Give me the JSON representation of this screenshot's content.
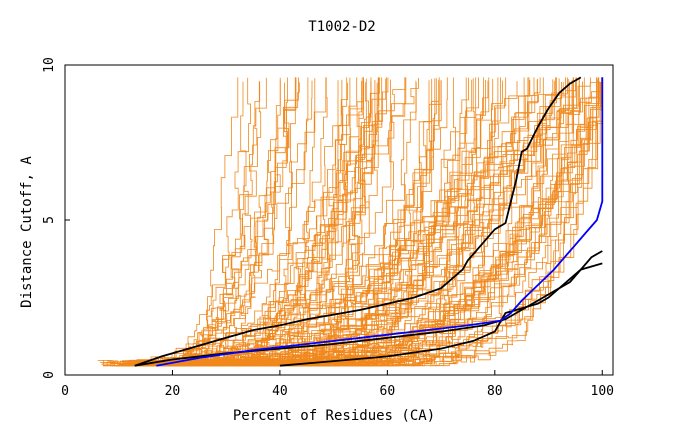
{
  "chart_data": {
    "type": "line",
    "title": "T1002-D2",
    "xlabel": "Percent of Residues (CA)",
    "ylabel": "Distance Cutoff, A",
    "xlim": [
      0,
      102
    ],
    "ylim": [
      0,
      10
    ],
    "xticks": [
      0,
      20,
      40,
      60,
      80,
      100
    ],
    "yticks": [
      0,
      5,
      10
    ],
    "colors": {
      "background_models": "#f0881c",
      "highlight_black": "#000000",
      "highlight_blue": "#0000ff"
    },
    "background_series_count": 130,
    "highlighted_series": [
      {
        "name": "black-curve-1",
        "color": "#000000",
        "x": [
          13,
          18,
          24,
          30,
          35,
          40,
          45,
          50,
          55,
          60,
          65,
          70,
          72,
          74,
          75,
          76,
          78,
          80,
          82,
          83,
          84,
          85,
          86,
          88,
          90,
          92,
          94,
          96
        ],
        "y": [
          0.3,
          0.6,
          0.9,
          1.2,
          1.45,
          1.6,
          1.8,
          1.95,
          2.1,
          2.3,
          2.5,
          2.8,
          3.1,
          3.4,
          3.7,
          3.9,
          4.3,
          4.7,
          4.9,
          5.6,
          6.3,
          7.2,
          7.3,
          8.0,
          8.6,
          9.1,
          9.4,
          9.6
        ]
      },
      {
        "name": "black-curve-2",
        "color": "#000000",
        "x": [
          13,
          20,
          30,
          40,
          50,
          60,
          70,
          78,
          82,
          84,
          88,
          92,
          96,
          100
        ],
        "y": [
          0.3,
          0.5,
          0.7,
          0.85,
          1.0,
          1.2,
          1.4,
          1.6,
          1.8,
          2.0,
          2.4,
          2.8,
          3.4,
          3.6
        ]
      },
      {
        "name": "black-curve-3",
        "color": "#000000",
        "x": [
          40,
          50,
          60,
          70,
          76,
          80,
          82,
          84,
          86,
          88,
          90,
          92,
          94,
          96,
          98,
          100
        ],
        "y": [
          0.3,
          0.45,
          0.6,
          0.85,
          1.1,
          1.4,
          2.0,
          2.1,
          2.2,
          2.3,
          2.5,
          2.8,
          3.0,
          3.4,
          3.8,
          4.0
        ]
      },
      {
        "name": "blue-curve",
        "color": "#0000ff",
        "x": [
          17,
          25,
          35,
          45,
          55,
          65,
          75,
          81,
          83,
          85,
          88,
          91,
          93,
          95,
          97,
          99,
          100,
          100
        ],
        "y": [
          0.3,
          0.55,
          0.8,
          1.0,
          1.2,
          1.4,
          1.6,
          1.75,
          2.0,
          2.4,
          2.9,
          3.4,
          3.8,
          4.2,
          4.6,
          5.0,
          5.6,
          9.6
        ]
      }
    ]
  }
}
